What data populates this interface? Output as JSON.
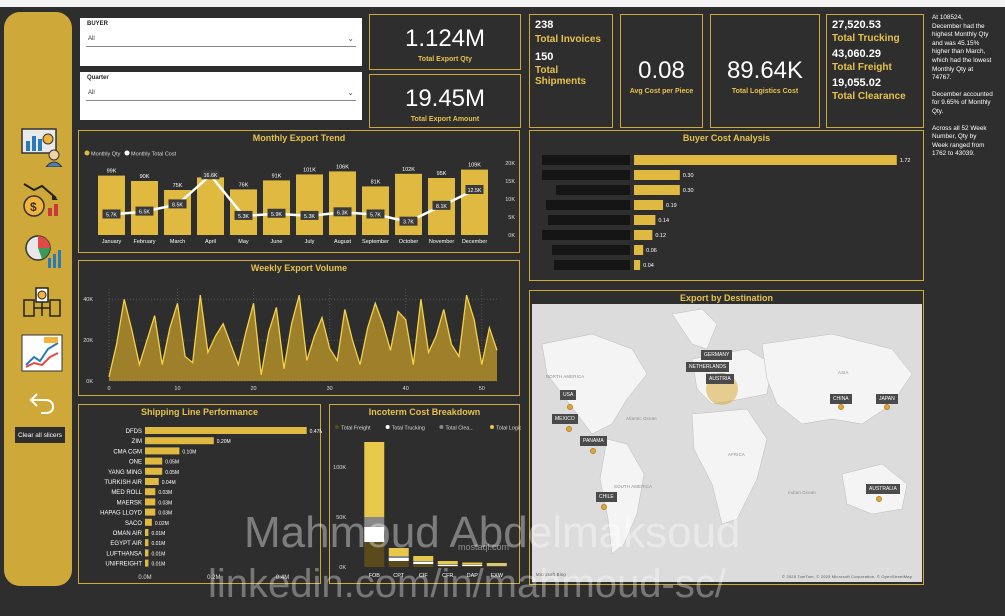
{
  "filters": {
    "buyer": {
      "label": "BUYER",
      "value": "All"
    },
    "quarter": {
      "label": "Quarter",
      "value": "All"
    }
  },
  "kpis": {
    "total_export_qty": {
      "value": "1.124M",
      "label": "Total Export Qty"
    },
    "total_export_amount": {
      "value": "19.45M",
      "label": "Total Export Amount"
    },
    "invoices_value": "238",
    "invoices_label": "Total Invoices",
    "shipments_value": "150",
    "shipments_label": "Total Shipments",
    "avg_cost": {
      "value": "0.08",
      "label": "Avg Cost per Piece"
    },
    "logistics": {
      "value": "89.64K",
      "label": "Total Logistics Cost"
    },
    "trucking_value": "27,520.53",
    "trucking_label": "Total Trucking",
    "freight_value": "43,060.29",
    "freight_label": "Total Freight",
    "clearance_value": "19,055.02",
    "clearance_label": "Total Clearance"
  },
  "narrative": {
    "p1": "At 108524, December had the highest Monthly Qty and was 45.15% higher than March, which had the lowest Monthly Qty at 74767.",
    "p2": "December accounted for 9.65% of Monthly Qty.",
    "p3": "Across all 52 Week Number, Qty by Week ranged from 1762 to 43039."
  },
  "sidebar": {
    "icons": [
      "dashboard-analytics-icon",
      "cost-money-icon",
      "pie-analytics-icon",
      "shipping-logistics-icon",
      "line-chart-icon",
      "back-arrow-icon"
    ],
    "clear_label": "Clear all slicers"
  },
  "colors": {
    "gold": "#cfa83a",
    "bar": "#e0b940",
    "background": "#2e2e2e"
  },
  "chart_data": [
    {
      "type": "bar",
      "title": "Monthly Export Trend",
      "categories": [
        "January",
        "February",
        "March",
        "April",
        "May",
        "June",
        "July",
        "August",
        "September",
        "October",
        "November",
        "December"
      ],
      "series": [
        {
          "name": "Monthly Qty",
          "type": "bar",
          "values": [
            99,
            90,
            75,
            96,
            76,
            91,
            101,
            106,
            81,
            102,
            95,
            109
          ],
          "labels": [
            "99K",
            "90K",
            "75K",
            "96K",
            "76K",
            "91K",
            "101K",
            "106K",
            "81K",
            "102K",
            "95K",
            "109K"
          ]
        },
        {
          "name": "Monthly Total Cost",
          "type": "line",
          "values": [
            5.7,
            6.5,
            8.5,
            16.6,
            5.3,
            5.9,
            5.3,
            6.3,
            5.7,
            3.7,
            8.1,
            12.5
          ],
          "labels": [
            "5.7K",
            "6.5K",
            "8.5K",
            "16.6K",
            "5.3K",
            "5.9K",
            "5.3K",
            "6.3K",
            "5.7K",
            "3.7K",
            "8.1K",
            "12.5K"
          ]
        }
      ],
      "y2_ticks": [
        "20K",
        "15K",
        "10K",
        "5K",
        "0K"
      ]
    },
    {
      "type": "bar",
      "title": "Buyer Cost Analysis",
      "values": [
        1.72,
        0.3,
        0.3,
        0.19,
        0.14,
        0.12,
        0.06,
        0.04
      ],
      "labels": [
        "1.72",
        "0.30",
        "0.30",
        "0.19",
        "0.14",
        "0.12",
        "0.06",
        "0.04"
      ],
      "xlim": [
        0,
        1.8
      ]
    },
    {
      "type": "area",
      "title": "Weekly Export Volume",
      "x": [
        1,
        2,
        3,
        4,
        5,
        6,
        7,
        8,
        9,
        10,
        11,
        12,
        13,
        14,
        15,
        16,
        17,
        18,
        19,
        20,
        21,
        22,
        23,
        24,
        25,
        26,
        27,
        28,
        29,
        30,
        31,
        32,
        33,
        34,
        35,
        36,
        37,
        38,
        39,
        40,
        41,
        42,
        43,
        44,
        45,
        46,
        47,
        48,
        49,
        50,
        51,
        52
      ],
      "values": [
        2,
        18,
        40,
        25,
        8,
        20,
        32,
        8,
        26,
        38,
        12,
        9,
        42,
        14,
        22,
        28,
        18,
        8,
        24,
        38,
        3,
        24,
        36,
        6,
        28,
        42,
        10,
        22,
        31,
        16,
        10,
        35,
        20,
        8,
        26,
        38,
        28,
        15,
        34,
        30,
        8,
        40,
        14,
        22,
        35,
        18,
        12,
        42,
        30,
        8,
        26,
        15
      ],
      "xlim": [
        1,
        52
      ],
      "ylim": [
        0,
        45
      ],
      "x_ticks": [
        "0",
        "10",
        "20",
        "30",
        "40",
        "50"
      ],
      "y_ticks": [
        "40K",
        "20K",
        "0K"
      ]
    },
    {
      "type": "bar",
      "title": "Shipping Line Performance",
      "categories": [
        "DFDS",
        "ZIM",
        "CMA CGM",
        "ONE",
        "YANG MING",
        "TURKISH AIR",
        "MED ROLL",
        "MAERSK",
        "HAPAG LLOYD",
        "SACO",
        "OMAN AIR",
        "EGYPT AIR",
        "LUFTHANSA",
        "UNIFREIGHT"
      ],
      "values": [
        0.47,
        0.2,
        0.1,
        0.05,
        0.05,
        0.04,
        0.03,
        0.03,
        0.03,
        0.02,
        0.01,
        0.01,
        0.01,
        0.01
      ],
      "labels": [
        "0.47M",
        "0.20M",
        "0.10M",
        "0.05M",
        "0.05M",
        "0.04M",
        "0.03M",
        "0.03M",
        "0.03M",
        "0.02M",
        "0.01M",
        "0.01M",
        "0.01M",
        "0.01M"
      ],
      "x_ticks": [
        "0.0M",
        "0.2M",
        "0.4M"
      ],
      "xlim": [
        0,
        0.5
      ]
    },
    {
      "type": "bar",
      "title": "Incoterm Cost Breakdown",
      "categories": [
        "FOB",
        "CPT",
        "CIF",
        "CFR",
        "DAP",
        "EXW"
      ],
      "legend": [
        "Total Freight",
        "Total Trucking",
        "Total Clea...",
        "Total Logis..."
      ],
      "series": [
        {
          "name": "Total Freight",
          "color": "#5a4a1c",
          "values": [
            25,
            6,
            3,
            1,
            1,
            1
          ]
        },
        {
          "name": "Total Trucking",
          "color": "#ffffff",
          "values": [
            15,
            3,
            2,
            1,
            1,
            0.5
          ]
        },
        {
          "name": "Total Clea...",
          "color": "#888888",
          "values": [
            10,
            2,
            1,
            1,
            0.5,
            0.5
          ]
        },
        {
          "name": "Total Logis...",
          "color": "#e8c84a",
          "values": [
            75,
            8,
            5,
            3,
            2,
            2
          ]
        }
      ],
      "ylim": [
        0,
        130
      ],
      "y_ticks": [
        "100K",
        "50K",
        "0K"
      ]
    }
  ],
  "map": {
    "title": "Export by Destination",
    "countries": [
      "GERMANY",
      "NETHERLANDS",
      "AUSTRIA",
      "USA",
      "MEXICO",
      "PANAMA",
      "CHILE",
      "CHINA",
      "JAPAN",
      "AUSTRALIA"
    ],
    "regions": [
      "NORTH AMERICA",
      "SOUTH AMERICA",
      "EUROPE",
      "ASIA",
      "AFRICA",
      "Atlantic Ocean",
      "Indian Ocean"
    ],
    "attribution": "© 2025 TomTom, © 2025 Microsoft Corporation, © OpenStreetMap",
    "bing": "Microsoft Bing"
  },
  "watermark": {
    "name": "Mahmoud Abdelmaksoud",
    "link": "linkedin.com/in/mahmoud-sc/",
    "site": "mostaql.com"
  }
}
